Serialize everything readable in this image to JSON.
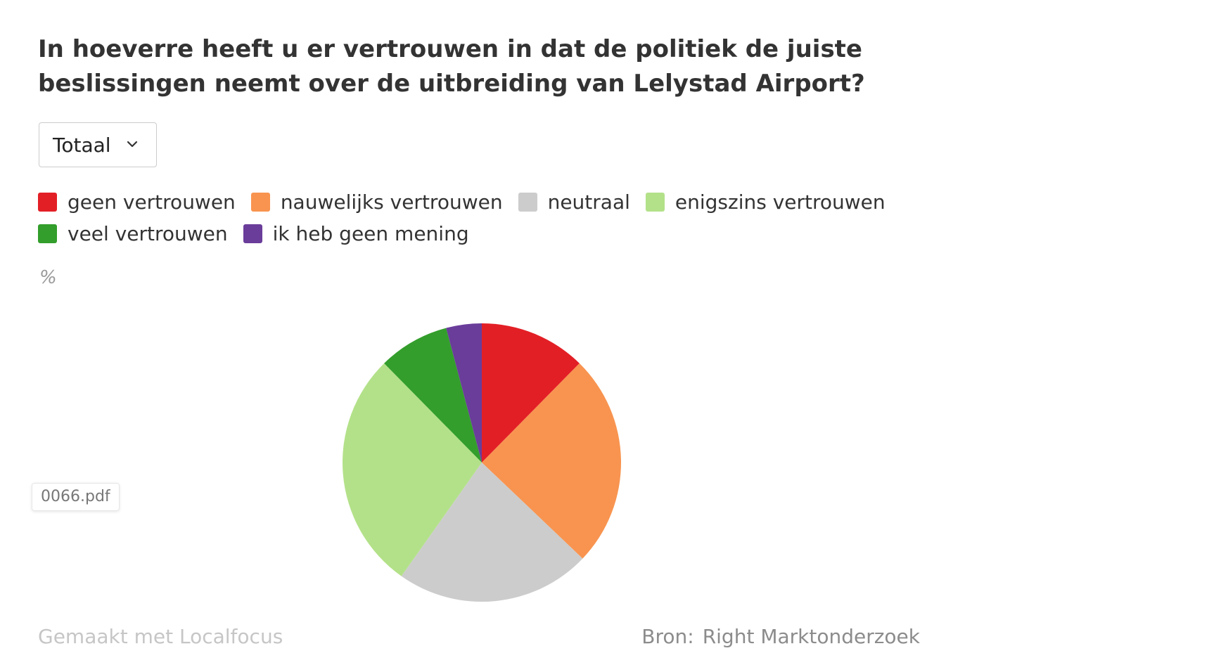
{
  "header": {
    "title": "In hoeverre heeft u er vertrouwen in dat de politiek de juiste beslissingen neemt over de uitbreiding van Lelystad Airport?"
  },
  "filter": {
    "selected": "Totaal",
    "icon": "chevron-down-icon"
  },
  "unit_label": "%",
  "file_tag": "0066.pdf",
  "footer": {
    "made_with": "Gemaakt met Localfocus",
    "source_label": "Bron:",
    "source_value": "Right Marktonderzoek"
  },
  "chart_data": {
    "type": "pie",
    "title": "In hoeverre heeft u er vertrouwen in dat de politiek de juiste beslissingen neemt over de uitbreiding van Lelystad Airport?",
    "unit": "%",
    "legend_position": "top",
    "categories": [
      "geen vertrouwen",
      "nauwelijks vertrouwen",
      "neutraal",
      "enigszins vertrouwen",
      "veel vertrouwen",
      "ik heb geen mening"
    ],
    "values": [
      12,
      24,
      22,
      27,
      8,
      4
    ],
    "colors": [
      "#e31f26",
      "#f89450",
      "#cccccc",
      "#b3e189",
      "#339e2b",
      "#6a3d9a"
    ]
  }
}
